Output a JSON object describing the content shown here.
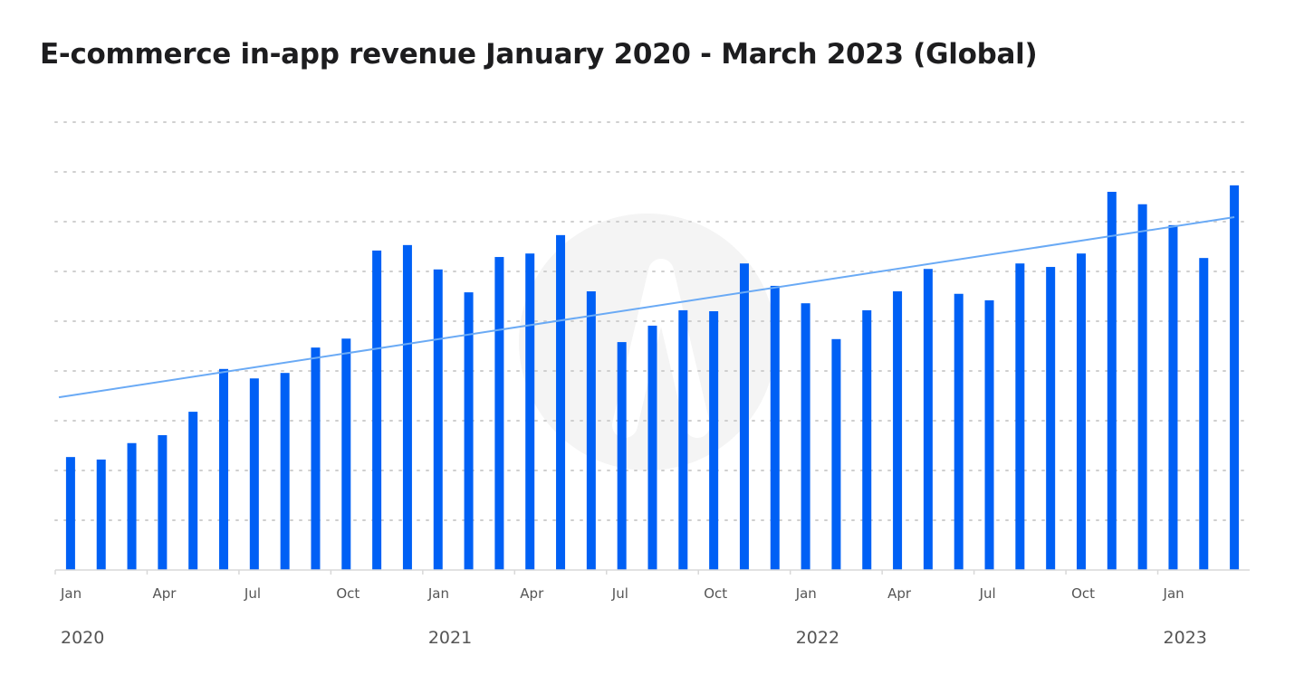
{
  "chart_data": {
    "type": "bar",
    "title": "E-commerce in-app revenue January 2020 - March 2023 (Global)",
    "xlabel": "",
    "ylabel": "",
    "y_unit_note_hidden": null,
    "ylim": [
      0,
      9
    ],
    "grid": true,
    "bar_color": "#0060f5",
    "trend_color": "#6aaaf5",
    "categories": [
      "Jan 2020",
      "Feb 2020",
      "Mar 2020",
      "Apr 2020",
      "May 2020",
      "Jun 2020",
      "Jul 2020",
      "Aug 2020",
      "Sep 2020",
      "Oct 2020",
      "Nov 2020",
      "Dec 2020",
      "Jan 2021",
      "Feb 2021",
      "Mar 2021",
      "Apr 2021",
      "May 2021",
      "Jun 2021",
      "Jul 2021",
      "Aug 2021",
      "Sep 2021",
      "Oct 2021",
      "Nov 2021",
      "Dec 2021",
      "Jan 2022",
      "Feb 2022",
      "Mar 2022",
      "Apr 2022",
      "May 2022",
      "Jun 2022",
      "Jul 2022",
      "Aug 2022",
      "Sep 2022",
      "Oct 2022",
      "Nov 2022",
      "Dec 2022",
      "Jan 2023",
      "Feb 2023",
      "Mar 2023"
    ],
    "values": [
      2.27,
      2.22,
      2.55,
      2.71,
      3.18,
      4.04,
      3.85,
      3.96,
      4.47,
      4.65,
      6.42,
      6.53,
      6.04,
      5.58,
      6.29,
      6.36,
      6.73,
      5.6,
      4.58,
      4.91,
      5.22,
      5.2,
      6.16,
      5.71,
      5.36,
      4.64,
      5.22,
      5.6,
      6.05,
      5.55,
      5.42,
      6.16,
      6.09,
      6.36,
      7.6,
      7.35,
      6.93,
      6.27,
      7.73
    ],
    "trend": {
      "start": 3.47,
      "end": 7.09
    },
    "month_ticks": [
      "Jan",
      "Apr",
      "Jul",
      "Oct",
      "Jan",
      "Apr",
      "Jul",
      "Oct",
      "Jan",
      "Apr",
      "Jul",
      "Oct",
      "Jan"
    ],
    "year_labels": [
      "2020",
      "2021",
      "2022",
      "2023"
    ]
  }
}
